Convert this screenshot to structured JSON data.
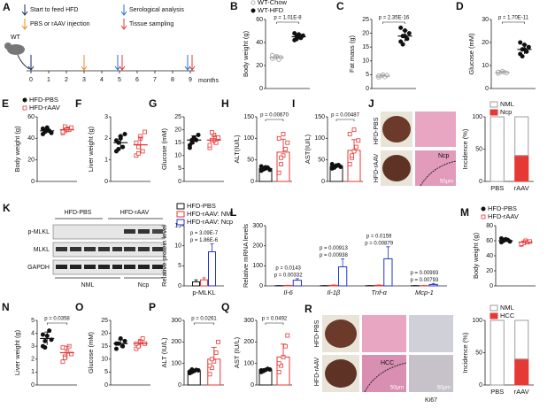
{
  "panel_a": {
    "label": "A",
    "strain": "WT",
    "legend": [
      "Start to feed HFD",
      "PBS or rAAV injection",
      "Serological analysis",
      "Tissue sampling"
    ],
    "ticks": [
      0,
      1,
      2,
      3,
      4,
      5,
      6,
      7,
      8,
      9
    ],
    "unit": "months"
  },
  "panel_j_images": {
    "label": "J",
    "rows": [
      "HFD-PBS",
      "HFD-rAAV"
    ],
    "region": "Ncp",
    "scale": "50μm"
  },
  "panel_k_blot": {
    "label": "K",
    "groups": [
      "HFD-PBS",
      "HFD-rAAV"
    ],
    "proteins": [
      "p-MLKL",
      "MLKL",
      "GAPDH"
    ],
    "subgroups": [
      "NML",
      "Ncp"
    ]
  },
  "panel_r_images": {
    "label": "R",
    "rows": [
      "HFD-PBS",
      "HFD-rAAV"
    ],
    "region": "HCC",
    "stain": "Ki67",
    "scales": [
      "50μm",
      "50μm"
    ]
  },
  "chart_data": [
    {
      "type": "dot",
      "label": "B",
      "ylabel": "Body weight (g)",
      "ylim": [
        0,
        60
      ],
      "yticks": [
        0,
        20,
        40,
        60
      ],
      "p": "p = 1.01E-8",
      "series": [
        {
          "name": "WT-Chow",
          "color": "#9e9e9e",
          "marker": "circle",
          "filled": false,
          "mean": 27,
          "sd": 1.5,
          "points": [
            26,
            27,
            28,
            25,
            27,
            29
          ]
        },
        {
          "name": "WT-HFD",
          "color": "#111111",
          "marker": "circle",
          "filled": true,
          "mean": 45,
          "sd": 2,
          "points": [
            42,
            45,
            47,
            44,
            46,
            48,
            43,
            45
          ]
        }
      ]
    },
    {
      "type": "dot",
      "label": "C",
      "ylabel": "Fat mass (g)",
      "ylim": [
        0,
        25
      ],
      "yticks": [
        0,
        5,
        10,
        15,
        20,
        25
      ],
      "p": "p = 2.35E-16",
      "series": [
        {
          "color": "#9e9e9e",
          "marker": "circle",
          "filled": false,
          "mean": 4.5,
          "sd": 0.4,
          "points": [
            4,
            4.5,
            5,
            4.2,
            4.8,
            4.6
          ]
        },
        {
          "color": "#111111",
          "marker": "circle",
          "filled": true,
          "mean": 19,
          "sd": 2,
          "points": [
            17,
            19,
            21,
            18,
            20,
            22,
            16,
            19
          ]
        }
      ]
    },
    {
      "type": "dot",
      "label": "D",
      "ylabel": "Glucose (mM)",
      "ylim": [
        0,
        30
      ],
      "yticks": [
        0,
        10,
        20,
        30
      ],
      "p": "p = 1.70E-11",
      "series": [
        {
          "color": "#9e9e9e",
          "marker": "circle",
          "filled": false,
          "mean": 7,
          "sd": 0.4,
          "points": [
            6.5,
            7,
            7.5,
            7,
            6.8,
            7.2
          ]
        },
        {
          "color": "#111111",
          "marker": "circle",
          "filled": true,
          "mean": 17,
          "sd": 2,
          "points": [
            15,
            17,
            19,
            16,
            18,
            20,
            14,
            17
          ]
        }
      ]
    },
    {
      "type": "dot",
      "label": "E",
      "ylabel": "Body weight (g)",
      "ylim": [
        0,
        60
      ],
      "yticks": [
        0,
        20,
        40,
        60
      ],
      "series": [
        {
          "name": "HFD-PBS",
          "color": "#111111",
          "marker": "circle",
          "filled": true,
          "mean": 47,
          "sd": 2,
          "points": [
            44,
            46,
            48,
            47,
            45,
            49,
            47,
            50
          ]
        },
        {
          "name": "HFD-rAAV",
          "color": "#e53935",
          "marker": "square",
          "filled": false,
          "mean": 48,
          "sd": 2,
          "points": [
            45,
            47,
            49,
            48,
            50,
            46,
            51,
            48
          ]
        }
      ]
    },
    {
      "type": "dot",
      "label": "F",
      "ylabel": "Liver weight (g)",
      "ylim": [
        0,
        3
      ],
      "yticks": [
        0,
        1,
        2,
        3
      ],
      "series": [
        {
          "color": "#111111",
          "marker": "circle",
          "filled": true,
          "mean": 1.8,
          "sd": 0.3,
          "points": [
            1.4,
            1.8,
            2.1,
            1.6,
            2.2,
            1.9,
            1.5,
            2
          ]
        },
        {
          "color": "#e53935",
          "marker": "square",
          "filled": false,
          "mean": 1.7,
          "sd": 0.35,
          "points": [
            1.2,
            1.6,
            2,
            1.4,
            2.3,
            1.8,
            1.3,
            2.1
          ]
        }
      ]
    },
    {
      "type": "dot",
      "label": "G",
      "ylabel": "Glucose (mM)",
      "ylim": [
        0,
        25
      ],
      "yticks": [
        0,
        5,
        10,
        15,
        20,
        25
      ],
      "series": [
        {
          "color": "#111111",
          "marker": "circle",
          "filled": true,
          "mean": 16,
          "sd": 1.6,
          "points": [
            13,
            15,
            17,
            16,
            18,
            14,
            16,
            17
          ]
        },
        {
          "color": "#e53935",
          "marker": "square",
          "filled": false,
          "mean": 16,
          "sd": 1.8,
          "points": [
            13,
            16,
            18,
            15,
            17,
            14,
            19,
            16
          ]
        }
      ]
    },
    {
      "type": "dot",
      "style": "bar",
      "label": "H",
      "ylabel": "ALT(IU/L)",
      "ylim": [
        0,
        150
      ],
      "yticks": [
        0,
        50,
        100,
        150
      ],
      "p": "p = 0.00670",
      "series": [
        {
          "color": "#111111",
          "marker": "circle",
          "filled": true,
          "mean": 30,
          "sd": 4,
          "points": [
            25,
            28,
            30,
            32,
            27,
            35,
            29,
            33
          ]
        },
        {
          "color": "#e53935",
          "marker": "square",
          "filled": false,
          "mean": 68,
          "sd": 30,
          "points": [
            20,
            40,
            60,
            75,
            90,
            100,
            55,
            110
          ]
        }
      ]
    },
    {
      "type": "dot",
      "style": "bar",
      "label": "I",
      "ylabel": "AST(IU/L)",
      "ylim": [
        0,
        150
      ],
      "yticks": [
        0,
        50,
        100,
        150
      ],
      "p": "p = 0.00487",
      "series": [
        {
          "color": "#111111",
          "marker": "circle",
          "filled": true,
          "mean": 35,
          "sd": 3,
          "points": [
            30,
            33,
            36,
            38,
            34,
            40,
            32,
            37
          ]
        },
        {
          "color": "#e53935",
          "marker": "square",
          "filled": false,
          "mean": 72,
          "sd": 25,
          "points": [
            40,
            55,
            70,
            80,
            95,
            110,
            60,
            120
          ]
        }
      ]
    },
    {
      "type": "stacked",
      "ylabel": "Incidence (%)",
      "ylim": [
        0,
        100
      ],
      "yticks": [
        0,
        50,
        100
      ],
      "categories": [
        "PBS",
        "rAAV"
      ],
      "series": [
        {
          "name": "NML",
          "color": "#9e9e9e",
          "filled": false,
          "values": [
            100,
            60
          ]
        },
        {
          "name": "Ncp",
          "color": "#e53935",
          "filled": true,
          "values": [
            0,
            40
          ]
        }
      ]
    },
    {
      "type": "grouped",
      "ylabel": "Relative protein level",
      "ylim": [
        0,
        15
      ],
      "yticks": [
        0,
        5,
        10,
        15
      ],
      "categories": [
        "p-MLKL"
      ],
      "pvalues": [
        [
          "p = 3.09E-7",
          "p = 1.86E-6"
        ]
      ],
      "series": [
        {
          "name": "HFD-PBS",
          "color": "#111111",
          "values": [
            1
          ],
          "sd": [
            0.5
          ]
        },
        {
          "name": "HFD-rAAV: NML",
          "color": "#e53935",
          "values": [
            1.5
          ],
          "sd": [
            0.5
          ]
        },
        {
          "name": "HFD-rAAV: Ncp",
          "color": "#2233cc",
          "values": [
            8.5
          ],
          "sd": [
            2
          ]
        }
      ]
    },
    {
      "type": "grouped",
      "label": "L",
      "italic": true,
      "ylabel": "Relative mRNA levels",
      "ylim": [
        0,
        300
      ],
      "yticks": [
        0,
        100,
        200,
        300
      ],
      "categories": [
        "Il-6",
        "Il-1β",
        "Tnf-α",
        "Mcp-1"
      ],
      "pvalues": [
        [
          "p = 0.0143",
          "p = 0.00332"
        ],
        [
          "p = 0.00913",
          "p = 0.00938"
        ],
        [
          "p = 0.0159",
          "p = 0.00879"
        ],
        [
          "p = 0.00993",
          "p = 0.00793"
        ]
      ],
      "series": [
        {
          "color": "#111111",
          "values": [
            1,
            1,
            1,
            1
          ],
          "sd": [
            0.5,
            0.5,
            0.5,
            0.5
          ]
        },
        {
          "color": "#e53935",
          "values": [
            2,
            3,
            3,
            1
          ],
          "sd": [
            1,
            2,
            2,
            1
          ]
        },
        {
          "color": "#2233cc",
          "values": [
            28,
            95,
            135,
            7
          ],
          "sd": [
            8,
            40,
            60,
            5
          ]
        }
      ]
    },
    {
      "type": "dot",
      "label": "M",
      "ylabel": "Body weight (g)",
      "ylim": [
        0,
        80
      ],
      "yticks": [
        0,
        20,
        40,
        60,
        80
      ],
      "series": [
        {
          "name": "HFD-PBS",
          "color": "#111111",
          "marker": "circle",
          "filled": true,
          "mean": 60,
          "sd": 2,
          "points": [
            58,
            60,
            62,
            61,
            59,
            63
          ]
        },
        {
          "name": "HFD-rAAV",
          "color": "#e53935",
          "marker": "square",
          "filled": false,
          "mean": 58,
          "sd": 2,
          "points": [
            55,
            57,
            60,
            58,
            59,
            56
          ]
        }
      ]
    },
    {
      "type": "dot",
      "label": "N",
      "ylabel": "Liver weight (g)",
      "ylim": [
        0,
        5
      ],
      "yticks": [
        0,
        1,
        2,
        3,
        4,
        5
      ],
      "p": "p = 0.0358",
      "series": [
        {
          "color": "#111111",
          "marker": "circle",
          "filled": true,
          "mean": 3.6,
          "sd": 0.5,
          "points": [
            3,
            3.4,
            3.8,
            4.2,
            3.5,
            3.9,
            2.9
          ]
        },
        {
          "color": "#e53935",
          "marker": "square",
          "filled": false,
          "mean": 2.5,
          "sd": 0.5,
          "points": [
            1.8,
            2.2,
            2.6,
            3,
            2.4,
            2.9,
            2.1
          ]
        }
      ]
    },
    {
      "type": "dot",
      "label": "O",
      "ylabel": "Glucose (mM)",
      "ylim": [
        0,
        25
      ],
      "yticks": [
        0,
        5,
        10,
        15,
        20,
        25
      ],
      "series": [
        {
          "color": "#111111",
          "marker": "circle",
          "filled": true,
          "mean": 16,
          "sd": 1.5,
          "points": [
            14,
            16,
            18,
            15,
            17,
            16
          ]
        },
        {
          "color": "#e53935",
          "marker": "square",
          "filled": false,
          "mean": 16,
          "sd": 1.4,
          "points": [
            14,
            15,
            17,
            18,
            16,
            16
          ]
        }
      ]
    },
    {
      "type": "dot",
      "style": "bar",
      "label": "P",
      "ylabel": "ALT (IU/L)",
      "ylim": [
        0,
        300
      ],
      "yticks": [
        0,
        100,
        200,
        300
      ],
      "p": "p = 0.0261",
      "series": [
        {
          "color": "#111111",
          "marker": "circle",
          "filled": true,
          "mean": 65,
          "sd": 6,
          "points": [
            55,
            60,
            65,
            70,
            68,
            62,
            72
          ]
        },
        {
          "color": "#e53935",
          "marker": "square",
          "filled": false,
          "mean": 120,
          "sd": 55,
          "points": [
            50,
            80,
            110,
            150,
            200,
            90,
            120
          ]
        }
      ]
    },
    {
      "type": "dot",
      "style": "bar",
      "label": "Q",
      "ylabel": "AST (IU/L)",
      "ylim": [
        0,
        300
      ],
      "yticks": [
        0,
        100,
        200,
        300
      ],
      "p": "p = 0.0492",
      "series": [
        {
          "color": "#111111",
          "marker": "circle",
          "filled": true,
          "mean": 70,
          "sd": 6,
          "points": [
            60,
            65,
            70,
            75,
            72,
            68
          ]
        },
        {
          "color": "#e53935",
          "marker": "square",
          "filled": false,
          "mean": 130,
          "sd": 60,
          "points": [
            60,
            90,
            130,
            180,
            230,
            100
          ]
        }
      ]
    },
    {
      "type": "stacked",
      "ylabel": "Incidence (%)",
      "ylim": [
        0,
        100
      ],
      "yticks": [
        0,
        50,
        100
      ],
      "categories": [
        "PBS",
        "rAAV"
      ],
      "series": [
        {
          "name": "NML",
          "color": "#9e9e9e",
          "filled": false,
          "values": [
            100,
            60
          ]
        },
        {
          "name": "HCC",
          "color": "#e53935",
          "filled": true,
          "values": [
            0,
            40
          ]
        }
      ]
    }
  ]
}
